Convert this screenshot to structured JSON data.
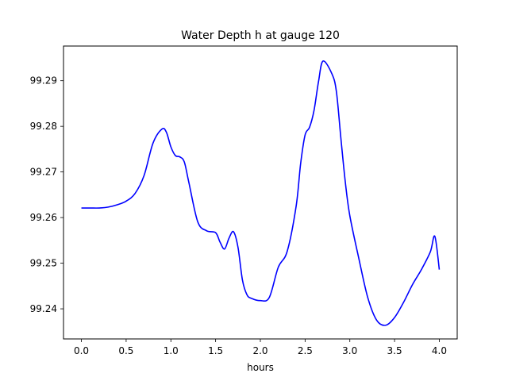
{
  "chart_data": {
    "type": "line",
    "title": "Water Depth h at gauge 120",
    "xlabel": "hours",
    "ylabel": "",
    "xlim": [
      -0.2,
      4.2
    ],
    "ylim": [
      99.2334,
      99.2976
    ],
    "grid": false,
    "x_ticks": [
      0.0,
      0.5,
      1.0,
      1.5,
      2.0,
      2.5,
      3.0,
      3.5,
      4.0
    ],
    "x_tick_labels": [
      "0.0",
      "0.5",
      "1.0",
      "1.5",
      "2.0",
      "2.5",
      "3.0",
      "3.5",
      "4.0"
    ],
    "y_ticks": [
      99.24,
      99.25,
      99.26,
      99.27,
      99.28,
      99.29
    ],
    "y_tick_labels": [
      "99.24",
      "99.25",
      "99.26",
      "99.27",
      "99.28",
      "99.29"
    ],
    "series": [
      {
        "color": "#0000ff",
        "x": [
          0.0,
          0.1,
          0.2,
          0.3,
          0.4,
          0.5,
          0.6,
          0.7,
          0.8,
          0.9,
          0.95,
          1.0,
          1.05,
          1.1,
          1.15,
          1.2,
          1.3,
          1.4,
          1.5,
          1.55,
          1.6,
          1.65,
          1.7,
          1.75,
          1.8,
          1.85,
          1.9,
          2.0,
          2.1,
          2.2,
          2.3,
          2.4,
          2.45,
          2.5,
          2.55,
          2.6,
          2.65,
          2.7,
          2.8,
          2.85,
          2.9,
          2.95,
          3.0,
          3.1,
          3.2,
          3.3,
          3.4,
          3.5,
          3.6,
          3.7,
          3.8,
          3.9,
          3.95,
          4.0
        ],
        "y": [
          99.2621,
          99.2621,
          99.2621,
          99.2623,
          99.2628,
          99.2636,
          99.2653,
          99.2692,
          99.2763,
          99.2794,
          99.2787,
          99.2755,
          99.2736,
          99.2733,
          99.2722,
          99.2678,
          99.2591,
          99.2571,
          99.2567,
          99.2546,
          99.2531,
          99.2555,
          99.2569,
          99.2535,
          99.2463,
          99.2431,
          99.2423,
          99.2418,
          99.2425,
          99.2491,
          99.2526,
          99.2625,
          99.2718,
          99.2781,
          99.2798,
          99.2835,
          99.2898,
          99.2943,
          99.2915,
          99.2876,
          99.2774,
          99.2677,
          99.2604,
          99.2511,
          99.2425,
          99.2375,
          99.2364,
          99.2381,
          99.2414,
          99.2453,
          99.2486,
          99.2525,
          99.2559,
          99.2486
        ]
      }
    ]
  }
}
